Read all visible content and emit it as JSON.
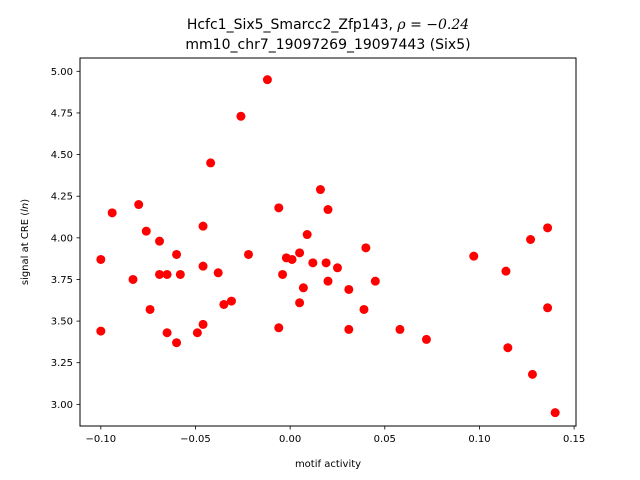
{
  "chart_data": {
    "type": "scatter",
    "title_line1": "Hcfc1_Six5_Smarcc2_Zfp143, ",
    "title_rho": "ρ = −0.24",
    "title_line2": "mm10_chr7_19097269_19097443 (Six5)",
    "xlabel": "motif activity",
    "ylabel": "signal at CRE (",
    "ylabel_ln": "ln",
    "ylabel_end": ")",
    "xlim": [
      -0.111,
      0.151
    ],
    "ylim": [
      2.87,
      5.08
    ],
    "x_ticks": [
      -0.1,
      -0.05,
      0.0,
      0.05,
      0.1,
      0.15
    ],
    "x_tick_labels": [
      "−0.10",
      "−0.05",
      "0.00",
      "0.05",
      "0.10",
      "0.15"
    ],
    "y_ticks": [
      3.0,
      3.25,
      3.5,
      3.75,
      4.0,
      4.25,
      4.5,
      4.75,
      5.0
    ],
    "y_tick_labels": [
      "3.00",
      "3.25",
      "3.50",
      "3.75",
      "4.00",
      "4.25",
      "4.50",
      "4.75",
      "5.00"
    ],
    "marker_color": "#ff0000",
    "points": [
      {
        "x": -0.012,
        "y": 4.95
      },
      {
        "x": -0.026,
        "y": 4.73
      },
      {
        "x": -0.042,
        "y": 4.45
      },
      {
        "x": 0.016,
        "y": 4.29
      },
      {
        "x": -0.08,
        "y": 4.2
      },
      {
        "x": -0.094,
        "y": 4.15
      },
      {
        "x": -0.006,
        "y": 4.18
      },
      {
        "x": 0.02,
        "y": 4.17
      },
      {
        "x": -0.046,
        "y": 4.07
      },
      {
        "x": 0.136,
        "y": 4.06
      },
      {
        "x": -0.076,
        "y": 4.04
      },
      {
        "x": 0.009,
        "y": 4.02
      },
      {
        "x": -0.069,
        "y": 3.98
      },
      {
        "x": 0.127,
        "y": 3.99
      },
      {
        "x": 0.04,
        "y": 3.94
      },
      {
        "x": 0.005,
        "y": 3.91
      },
      {
        "x": -0.06,
        "y": 3.9
      },
      {
        "x": -0.022,
        "y": 3.9
      },
      {
        "x": 0.097,
        "y": 3.89
      },
      {
        "x": -0.002,
        "y": 3.88
      },
      {
        "x": -0.1,
        "y": 3.87
      },
      {
        "x": 0.001,
        "y": 3.87
      },
      {
        "x": 0.019,
        "y": 3.85
      },
      {
        "x": 0.012,
        "y": 3.85
      },
      {
        "x": -0.046,
        "y": 3.83
      },
      {
        "x": 0.025,
        "y": 3.82
      },
      {
        "x": 0.114,
        "y": 3.8
      },
      {
        "x": -0.069,
        "y": 3.78
      },
      {
        "x": -0.065,
        "y": 3.78
      },
      {
        "x": -0.058,
        "y": 3.78
      },
      {
        "x": -0.038,
        "y": 3.79
      },
      {
        "x": -0.004,
        "y": 3.78
      },
      {
        "x": -0.083,
        "y": 3.75
      },
      {
        "x": 0.02,
        "y": 3.74
      },
      {
        "x": 0.045,
        "y": 3.74
      },
      {
        "x": 0.007,
        "y": 3.7
      },
      {
        "x": 0.031,
        "y": 3.69
      },
      {
        "x": -0.031,
        "y": 3.62
      },
      {
        "x": 0.005,
        "y": 3.61
      },
      {
        "x": -0.035,
        "y": 3.6
      },
      {
        "x": 0.136,
        "y": 3.58
      },
      {
        "x": -0.074,
        "y": 3.57
      },
      {
        "x": 0.039,
        "y": 3.57
      },
      {
        "x": -0.046,
        "y": 3.48
      },
      {
        "x": -0.006,
        "y": 3.46
      },
      {
        "x": 0.031,
        "y": 3.45
      },
      {
        "x": 0.058,
        "y": 3.45
      },
      {
        "x": -0.1,
        "y": 3.44
      },
      {
        "x": -0.065,
        "y": 3.43
      },
      {
        "x": -0.049,
        "y": 3.43
      },
      {
        "x": 0.072,
        "y": 3.39
      },
      {
        "x": -0.06,
        "y": 3.37
      },
      {
        "x": 0.115,
        "y": 3.34
      },
      {
        "x": 0.128,
        "y": 3.18
      },
      {
        "x": 0.14,
        "y": 2.95
      }
    ]
  }
}
